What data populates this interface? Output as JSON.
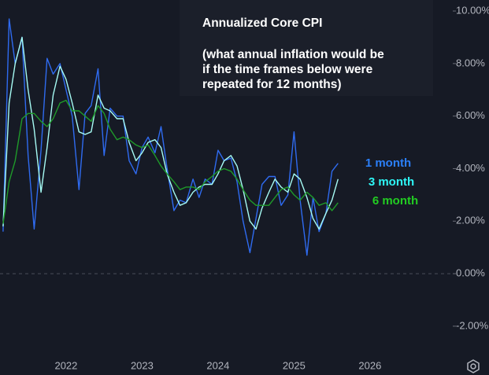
{
  "chart_data": {
    "type": "line",
    "title": "Annualized Core CPI",
    "subtitle": [
      "(what annual inflation would be",
      "if the time frames below were",
      "repeated for 12 months)"
    ],
    "x": [
      2021.17,
      2021.25,
      2021.33,
      2021.42,
      2021.5,
      2021.58,
      2021.67,
      2021.75,
      2021.83,
      2021.92,
      2022,
      2022.08,
      2022.17,
      2022.25,
      2022.33,
      2022.42,
      2022.5,
      2022.58,
      2022.67,
      2022.75,
      2022.83,
      2022.92,
      2023,
      2023.08,
      2023.17,
      2023.25,
      2023.33,
      2023.42,
      2023.5,
      2023.58,
      2023.67,
      2023.75,
      2023.83,
      2023.92,
      2024,
      2024.08,
      2024.17,
      2024.25,
      2024.33,
      2024.42,
      2024.5,
      2024.58,
      2024.67,
      2024.75,
      2024.83,
      2024.92,
      2025,
      2025.08,
      2025.17,
      2025.25,
      2025.33,
      2025.42,
      2025.5,
      2025.58
    ],
    "series": [
      {
        "name": "1 month",
        "color": "#2f6bf0",
        "label_color": "#2b7ff8",
        "values": [
          1.6,
          9.7,
          8.0,
          9.0,
          4.5,
          1.7,
          4.7,
          8.2,
          7.6,
          8.0,
          7.0,
          6.0,
          3.2,
          6.1,
          6.4,
          7.8,
          4.5,
          6.3,
          6.0,
          6.0,
          4.3,
          3.8,
          4.8,
          5.2,
          4.6,
          5.6,
          4.0,
          2.4,
          2.8,
          2.7,
          3.6,
          2.9,
          3.6,
          3.4,
          4.7,
          4.3,
          4.4,
          3.5,
          2.0,
          0.8,
          2.1,
          3.4,
          3.7,
          3.7,
          2.6,
          3.0,
          5.4,
          2.8,
          0.7,
          2.9,
          1.6,
          2.3,
          3.9,
          4.2
        ]
      },
      {
        "name": "3 month",
        "color": "#a6fbf4",
        "label_color": "#2ef7f7",
        "values": [
          1.8,
          6.5,
          8.0,
          9.0,
          7.0,
          5.5,
          3.1,
          4.8,
          6.8,
          7.9,
          7.4,
          6.5,
          5.4,
          5.3,
          5.4,
          6.8,
          6.3,
          6.2,
          5.9,
          5.9,
          5.0,
          4.3,
          4.6,
          5.0,
          5.1,
          4.8,
          3.8,
          3.1,
          2.6,
          2.7,
          3.1,
          3.3,
          3.4,
          3.4,
          3.8,
          4.3,
          4.5,
          4.1,
          3.2,
          2.0,
          1.7,
          2.5,
          3.1,
          3.6,
          3.3,
          3.1,
          3.8,
          3.6,
          2.9,
          2.1,
          1.7,
          2.3,
          2.8,
          3.6
        ]
      },
      {
        "name": "6 month",
        "color": "#1f9a2a",
        "label_color": "#22cc22",
        "values": [
          1.9,
          3.5,
          4.3,
          5.9,
          6.1,
          6.1,
          5.8,
          5.6,
          5.9,
          6.5,
          6.6,
          6.2,
          6.2,
          6.0,
          5.8,
          6.4,
          6.1,
          5.5,
          5.1,
          5.2,
          5.1,
          4.9,
          4.8,
          4.9,
          4.5,
          4.1,
          3.8,
          3.5,
          3.2,
          3.3,
          3.3,
          3.2,
          3.5,
          3.7,
          3.9,
          4.0,
          3.9,
          3.6,
          3.2,
          2.8,
          2.6,
          2.6,
          2.6,
          2.9,
          3.2,
          3.3,
          3.0,
          2.8,
          3.1,
          2.9,
          2.6,
          2.7,
          2.4,
          2.7
        ]
      }
    ],
    "xlim": [
      2021.13,
      2027.09
    ],
    "xticks": [
      2022,
      2023,
      2024,
      2025,
      2026
    ],
    "ylim": [
      -3.2,
      10.42
    ],
    "yticks": [
      {
        "value": -2,
        "label": "-2.00%"
      },
      {
        "value": 0,
        "label": "0.00%"
      },
      {
        "value": 2,
        "label": "2.00%"
      },
      {
        "value": 4,
        "label": "4.00%"
      },
      {
        "value": 6,
        "label": "6.00%"
      },
      {
        "value": 8,
        "label": "8.00%"
      },
      {
        "value": 10,
        "label": "10.00%"
      }
    ],
    "legend": "right"
  }
}
